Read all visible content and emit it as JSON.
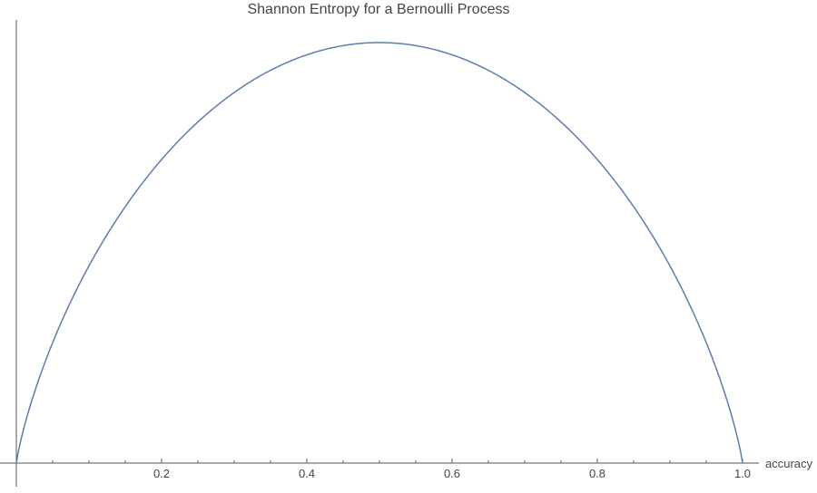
{
  "chart_data": {
    "type": "line",
    "title": "Shannon Entropy for a Bernoulli Process",
    "xlabel": "accuracy",
    "ylabel": "",
    "xlim": [
      0,
      1
    ],
    "ylim": [
      0,
      1
    ],
    "x_ticks": [
      0.2,
      0.4,
      0.6,
      0.8,
      1.0
    ],
    "x_tick_labels": [
      "0.2",
      "0.4",
      "0.6",
      "0.8",
      "1.0"
    ],
    "x_minor_tick_step": 0.05,
    "grid": false,
    "legend": "none",
    "series": [
      {
        "function": "binary_entropy",
        "color": "#5b7db4",
        "x": [
          0,
          0.02,
          0.05,
          0.1,
          0.15,
          0.2,
          0.25,
          0.3,
          0.35,
          0.4,
          0.45,
          0.5,
          0.55,
          0.6,
          0.65,
          0.7,
          0.75,
          0.8,
          0.85,
          0.9,
          0.95,
          0.98,
          1.0
        ],
        "y": [
          0,
          0.141,
          0.286,
          0.469,
          0.61,
          0.722,
          0.811,
          0.881,
          0.934,
          0.971,
          0.993,
          1.0,
          0.993,
          0.971,
          0.934,
          0.881,
          0.811,
          0.722,
          0.61,
          0.469,
          0.286,
          0.141,
          0
        ]
      }
    ]
  }
}
